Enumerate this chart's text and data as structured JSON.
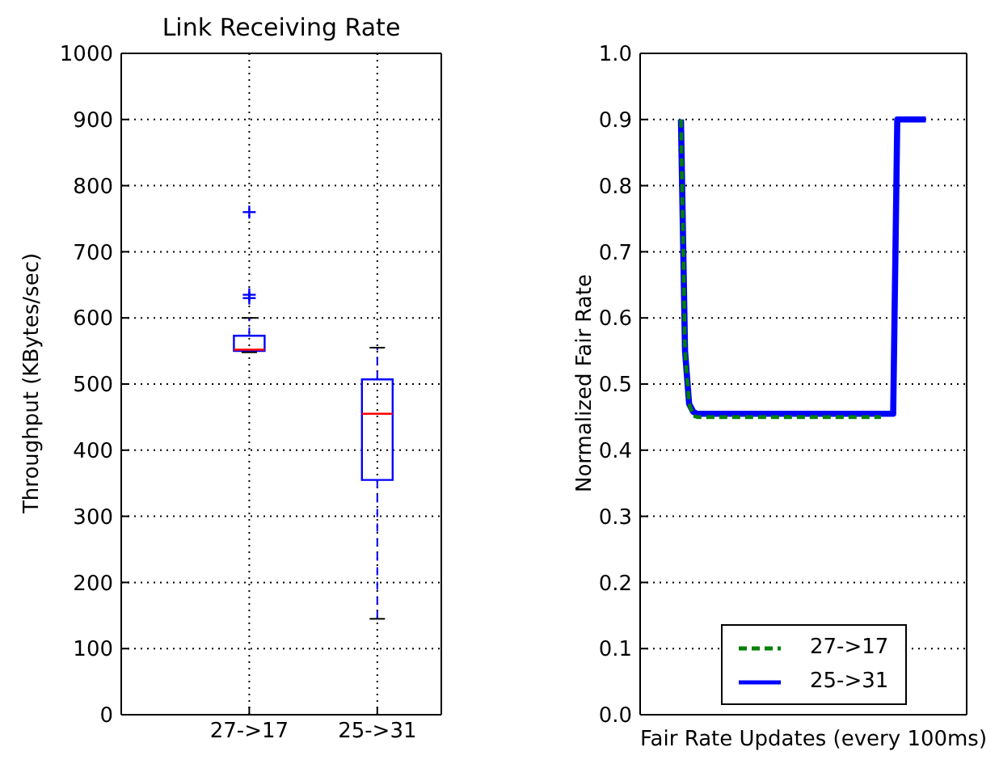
{
  "chart_data": [
    {
      "type": "box",
      "title": "Link Receiving Rate",
      "ylabel": "Throughput (KBytes/sec)",
      "categories": [
        "27->17",
        "25->31"
      ],
      "series": [
        {
          "color": "#0000ff",
          "boxes": [
            {
              "low": 548,
              "q1": 550,
              "median": 552,
              "q3": 573,
              "high": 600,
              "outliers": [
                760,
                635,
                630
              ]
            },
            {
              "low": 145,
              "q1": 355,
              "median": 455,
              "q3": 507,
              "high": 555
            }
          ]
        }
      ],
      "ylim": [
        0,
        1000
      ],
      "yticks": [
        0,
        100,
        200,
        300,
        400,
        500,
        600,
        700,
        800,
        900,
        1000
      ],
      "grid": true
    },
    {
      "type": "line",
      "xlabel": "Fair Rate Updates (every 100ms)",
      "ylabel": "Normalized Fair Rate",
      "categories": [
        null,
        null,
        null,
        null,
        null,
        null,
        null,
        null,
        null,
        null,
        null,
        null,
        null,
        null,
        null,
        null,
        null,
        null,
        null,
        null,
        null,
        null,
        null,
        null,
        null,
        null,
        null,
        null,
        null,
        null,
        null,
        null,
        null,
        null,
        null,
        null,
        null,
        null,
        null,
        null,
        null,
        null,
        null,
        null,
        null,
        null,
        null,
        null,
        null,
        null,
        null,
        null,
        null,
        null,
        null,
        null,
        null,
        null,
        null,
        null,
        null
      ],
      "series": [
        {
          "name": "27->17",
          "color": "#008000",
          "line_style": "dashed",
          "values": [
            0.9,
            0.55,
            0.47,
            0.452,
            0.45,
            0.45,
            0.45,
            0.45,
            0.45,
            0.45,
            0.45,
            0.45,
            0.45,
            0.45,
            0.45,
            0.45,
            0.45,
            0.45,
            0.45,
            0.45,
            0.45,
            0.45,
            0.45,
            0.45,
            0.45,
            0.45,
            0.45,
            0.45,
            0.45,
            0.45,
            0.45,
            0.45,
            0.45,
            0.45,
            0.45,
            0.45,
            0.45,
            0.45,
            0.45,
            0.45,
            0.45,
            0.45,
            0.45,
            0.45,
            0.45,
            0.45,
            0.45,
            0.45,
            0.45,
            0.45,
            null,
            null,
            null,
            null,
            null,
            null,
            null,
            null,
            null,
            null,
            null
          ]
        },
        {
          "name": "25->31",
          "color": "#0000ff",
          "line_style": "solid",
          "values": [
            0.9,
            0.55,
            0.47,
            0.458,
            0.455,
            0.455,
            0.455,
            0.455,
            0.455,
            0.455,
            0.455,
            0.455,
            0.455,
            0.455,
            0.455,
            0.455,
            0.455,
            0.455,
            0.455,
            0.455,
            0.455,
            0.455,
            0.455,
            0.455,
            0.455,
            0.455,
            0.455,
            0.455,
            0.455,
            0.455,
            0.455,
            0.455,
            0.455,
            0.455,
            0.455,
            0.455,
            0.455,
            0.455,
            0.455,
            0.455,
            0.455,
            0.455,
            0.455,
            0.455,
            0.455,
            0.455,
            0.455,
            0.455,
            0.455,
            0.455,
            0.455,
            0.455,
            0.455,
            0.9,
            0.9,
            0.9,
            0.9,
            0.9,
            0.9,
            0.9,
            0.9
          ]
        }
      ],
      "ylim": [
        0,
        1
      ],
      "yticks": [
        {
          "value": 0,
          "label": "0.0"
        },
        {
          "value": 0.1,
          "label": "0.1"
        },
        {
          "value": 0.2,
          "label": "0.2"
        },
        {
          "value": 0.3,
          "label": "0.3"
        },
        {
          "value": 0.4,
          "label": "0.4"
        },
        {
          "value": 0.5,
          "label": "0.5"
        },
        {
          "value": 0.6,
          "label": "0.6"
        },
        {
          "value": 0.7,
          "label": "0.7"
        },
        {
          "value": 0.8,
          "label": "0.8"
        },
        {
          "value": 0.9,
          "label": "0.9"
        },
        {
          "value": 1,
          "label": "1.0"
        }
      ],
      "grid": true,
      "legend": "bottom",
      "tick_labels": "y",
      "marker": "none"
    }
  ]
}
